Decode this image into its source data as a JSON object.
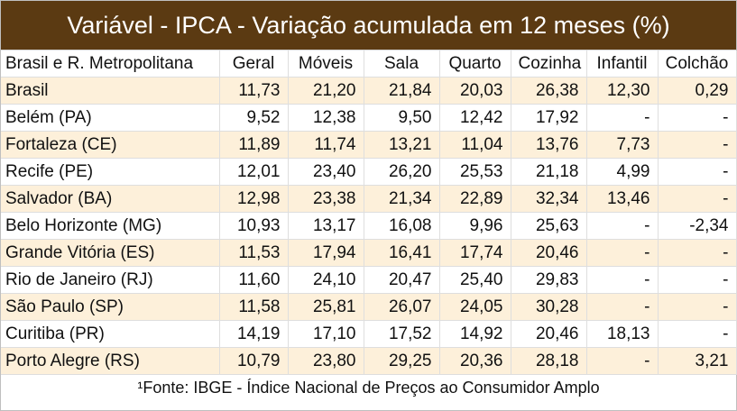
{
  "title": "Variável - IPCA - Variação acumulada em 12 meses (%)",
  "colors": {
    "title_bg": "#5b3a12",
    "row_shade": "#fdf0da"
  },
  "table": {
    "headers": [
      "Brasil e R. Metropolitana",
      "Geral",
      "Móveis",
      "Sala",
      "Quarto",
      "Cozinha",
      "Infantil",
      "Colchão"
    ],
    "rows": [
      [
        "Brasil",
        "11,73",
        "21,20",
        "21,84",
        "20,03",
        "26,38",
        "12,30",
        "0,29"
      ],
      [
        "Belém (PA)",
        "9,52",
        "12,38",
        "9,50",
        "12,42",
        "17,92",
        "-",
        "-"
      ],
      [
        "Fortaleza (CE)",
        "11,89",
        "11,74",
        "13,21",
        "11,04",
        "13,76",
        "7,73",
        "-"
      ],
      [
        "Recife (PE)",
        "12,01",
        "23,40",
        "26,20",
        "25,53",
        "21,18",
        "4,99",
        "-"
      ],
      [
        "Salvador (BA)",
        "12,98",
        "23,38",
        "21,34",
        "22,89",
        "32,34",
        "13,46",
        "-"
      ],
      [
        "Belo Horizonte (MG)",
        "10,93",
        "13,17",
        "16,08",
        "9,96",
        "25,63",
        "-",
        "-2,34"
      ],
      [
        "Grande Vitória (ES)",
        "11,53",
        "17,94",
        "16,41",
        "17,74",
        "20,46",
        "-",
        "-"
      ],
      [
        "Rio de Janeiro (RJ)",
        "11,60",
        "24,10",
        "20,47",
        "25,40",
        "29,83",
        "-",
        "-"
      ],
      [
        "São Paulo (SP)",
        "11,58",
        "25,81",
        "26,07",
        "24,05",
        "30,28",
        "-",
        "-"
      ],
      [
        "Curitiba (PR)",
        "14,19",
        "17,10",
        "17,52",
        "14,92",
        "20,46",
        "18,13",
        "-"
      ],
      [
        "Porto Alegre (RS)",
        "10,79",
        "23,80",
        "29,25",
        "20,36",
        "28,18",
        "-",
        "3,21"
      ]
    ]
  },
  "footer": "¹Fonte: IBGE - Índice Nacional de Preços ao Consumidor Amplo"
}
